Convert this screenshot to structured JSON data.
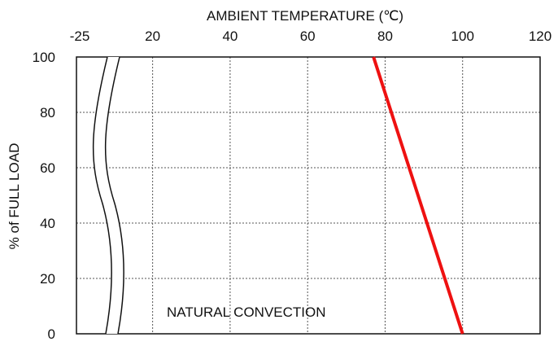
{
  "chart_data": {
    "type": "line",
    "xlabel": "AMBIENT TEMPERATURE (℃)",
    "ylabel": "% of FULL LOAD",
    "x_tick_labels": [
      "-25",
      "20",
      "40",
      "60",
      "80",
      "100",
      "120"
    ],
    "x_ticks_continuous": [
      20,
      40,
      60,
      80,
      100,
      120
    ],
    "y_ticks": [
      0,
      20,
      40,
      60,
      80,
      100
    ],
    "xlim_continuous": [
      10,
      120
    ],
    "ylim": [
      0,
      100
    ],
    "axis_break": "between -25 and 20",
    "grid": true,
    "annotation": "NATURAL CONVECTION",
    "series": [
      {
        "color": "#ee1111",
        "points": [
          [
            77,
            100
          ],
          [
            100,
            0
          ]
        ]
      }
    ]
  }
}
